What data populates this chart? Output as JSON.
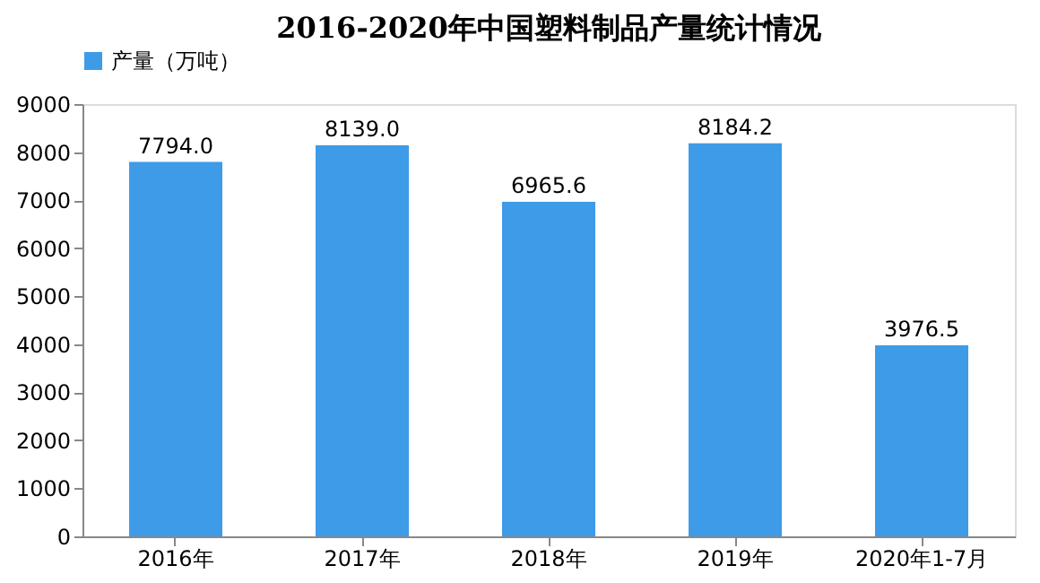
{
  "chart_data": {
    "type": "bar",
    "title": "2016-2020年中国塑料制品产量统计情况",
    "categories": [
      "2016年",
      "2017年",
      "2018年",
      "2019年",
      "2020年1-7月"
    ],
    "series": [
      {
        "name": "产量（万吨）",
        "color": "#3e9be8",
        "values": [
          7794.0,
          8139.0,
          6965.6,
          8184.2,
          3976.5
        ]
      }
    ],
    "value_labels": [
      "7794.0",
      "8139.0",
      "6965.6",
      "8184.2",
      "3976.5"
    ],
    "ylim": [
      0,
      9000
    ],
    "yticks": [
      0,
      1000,
      2000,
      3000,
      4000,
      5000,
      6000,
      7000,
      8000,
      9000
    ],
    "grid": false,
    "legend": "top"
  }
}
